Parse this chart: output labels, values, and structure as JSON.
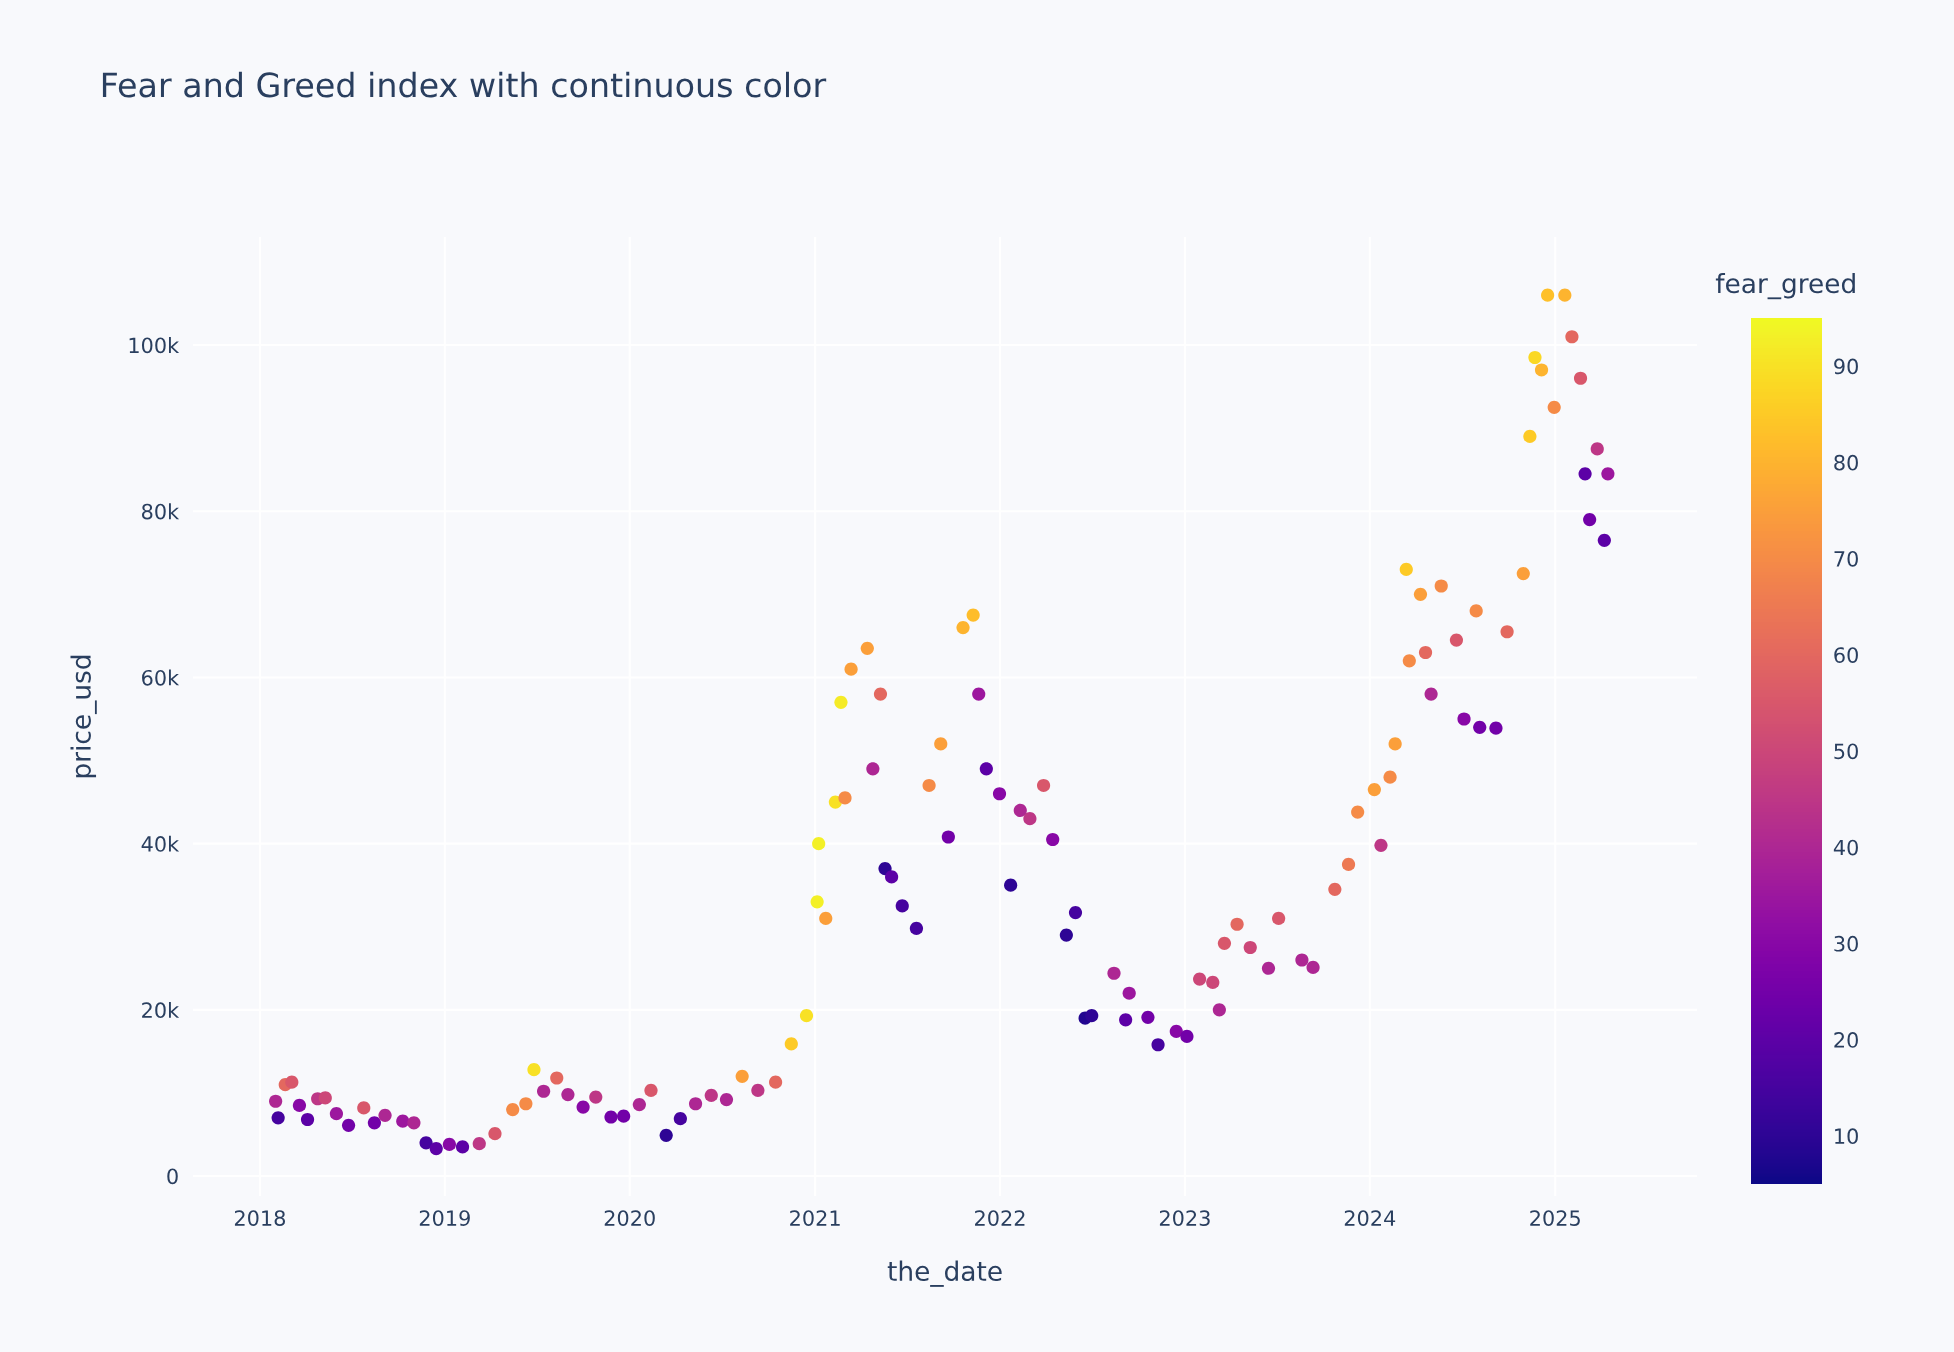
{
  "chart_data": {
    "type": "scatter",
    "title": "Fear and Greed index with continuous color",
    "xlabel": "the_date",
    "ylabel": "price_usd",
    "clabel": "fear_greed",
    "x": [
      "2018-02-01",
      "2018-02-06",
      "2018-02-20",
      "2018-03-05",
      "2018-03-20",
      "2018-04-05",
      "2018-04-25",
      "2018-05-10",
      "2018-06-01",
      "2018-06-25",
      "2018-07-25",
      "2018-08-15",
      "2018-09-05",
      "2018-10-10",
      "2018-11-01",
      "2018-11-25",
      "2018-12-15",
      "2019-01-10",
      "2019-02-05",
      "2019-03-10",
      "2019-04-10",
      "2019-05-15",
      "2019-06-10",
      "2019-06-26",
      "2019-07-15",
      "2019-08-10",
      "2019-09-01",
      "2019-10-01",
      "2019-10-26",
      "2019-11-25",
      "2019-12-20",
      "2020-01-20",
      "2020-02-12",
      "2020-03-13",
      "2020-04-10",
      "2020-05-10",
      "2020-06-10",
      "2020-07-10",
      "2020-08-10",
      "2020-09-10",
      "2020-10-15",
      "2020-11-15",
      "2020-12-15",
      "2021-01-05",
      "2021-01-08",
      "2021-01-22",
      "2021-02-10",
      "2021-02-21",
      "2021-03-01",
      "2021-03-13",
      "2021-04-14",
      "2021-04-25",
      "2021-05-10",
      "2021-05-19",
      "2021-06-01",
      "2021-06-22",
      "2021-07-20",
      "2021-08-14",
      "2021-09-06",
      "2021-09-21",
      "2021-10-20",
      "2021-11-09",
      "2021-11-20",
      "2021-12-05",
      "2021-12-31",
      "2022-01-22",
      "2022-02-10",
      "2022-03-01",
      "2022-03-28",
      "2022-04-15",
      "2022-05-12",
      "2022-05-30",
      "2022-06-18",
      "2022-07-01",
      "2022-08-14",
      "2022-09-06",
      "2022-09-13",
      "2022-10-20",
      "2022-11-09",
      "2022-12-15",
      "2023-01-05",
      "2023-01-30",
      "2023-02-25",
      "2023-03-10",
      "2023-03-20",
      "2023-04-14",
      "2023-05-10",
      "2023-06-15",
      "2023-07-05",
      "2023-08-20",
      "2023-09-11",
      "2023-10-24",
      "2023-11-20",
      "2023-12-08",
      "2024-01-10",
      "2024-01-23",
      "2024-02-10",
      "2024-02-20",
      "2024-03-13",
      "2024-03-19",
      "2024-04-10",
      "2024-04-20",
      "2024-05-01",
      "2024-05-21",
      "2024-06-20",
      "2024-07-05",
      "2024-07-29",
      "2024-08-05",
      "2024-09-06",
      "2024-09-28",
      "2024-10-30",
      "2024-11-12",
      "2024-11-22",
      "2024-12-05",
      "2024-12-17",
      "2024-12-30",
      "2025-01-20",
      "2025-02-03",
      "2025-02-20",
      "2025-03-01",
      "2025-03-10",
      "2025-03-25",
      "2025-04-08",
      "2025-04-15"
    ],
    "values": [
      9000,
      7000,
      11000,
      11300,
      8500,
      6800,
      9300,
      9400,
      7500,
      6100,
      8200,
      6400,
      7300,
      6600,
      6400,
      4000,
      3300,
      3800,
      3500,
      3900,
      5100,
      8000,
      8700,
      12800,
      10200,
      11800,
      9800,
      8300,
      9500,
      7100,
      7200,
      8600,
      10300,
      4900,
      6900,
      8700,
      9700,
      9200,
      12000,
      10300,
      11300,
      15900,
      19300,
      33000,
      40000,
      31000,
      45000,
      57000,
      45500,
      61000,
      63500,
      49000,
      58000,
      37000,
      36000,
      32500,
      29800,
      47000,
      52000,
      40800,
      66000,
      67500,
      58000,
      49000,
      46000,
      35000,
      44000,
      43000,
      47000,
      40500,
      29000,
      31700,
      19000,
      19300,
      24400,
      18800,
      22000,
      19100,
      15800,
      17400,
      16800,
      23700,
      23300,
      20000,
      28000,
      30300,
      27500,
      25000,
      31000,
      26000,
      25100,
      34500,
      37500,
      43800,
      46500,
      39800,
      48000,
      52000,
      73000,
      62000,
      70000,
      63000,
      58000,
      71000,
      64500,
      55000,
      68000,
      54000,
      53900,
      65500,
      72500,
      89000,
      98500,
      97000,
      106000,
      92500,
      106000,
      101000,
      96000,
      84500,
      79000,
      87500,
      76500,
      84500
    ],
    "cvalues": [
      40,
      15,
      60,
      55,
      30,
      20,
      45,
      50,
      35,
      25,
      55,
      25,
      40,
      35,
      40,
      15,
      20,
      30,
      20,
      45,
      55,
      70,
      70,
      90,
      40,
      60,
      40,
      30,
      45,
      25,
      25,
      40,
      55,
      10,
      15,
      40,
      45,
      40,
      75,
      45,
      60,
      85,
      90,
      93,
      93,
      75,
      90,
      92,
      70,
      75,
      75,
      40,
      60,
      10,
      20,
      15,
      15,
      70,
      75,
      25,
      80,
      82,
      35,
      20,
      30,
      10,
      40,
      45,
      55,
      30,
      10,
      15,
      8,
      10,
      40,
      20,
      35,
      25,
      15,
      30,
      25,
      50,
      50,
      40,
      55,
      60,
      50,
      40,
      55,
      40,
      40,
      60,
      65,
      70,
      75,
      45,
      70,
      75,
      85,
      70,
      75,
      60,
      40,
      70,
      55,
      30,
      70,
      25,
      25,
      60,
      75,
      85,
      88,
      80,
      83,
      70,
      80,
      60,
      55,
      20,
      25,
      45,
      20,
      35
    ],
    "xlim": [
      "2017-08-22",
      "2025-10-08"
    ],
    "xticks": [
      {
        "value": "2018",
        "label": "2018"
      },
      {
        "value": "2019",
        "label": "2019"
      },
      {
        "value": "2020",
        "label": "2020"
      },
      {
        "value": "2021",
        "label": "2021"
      },
      {
        "value": "2022",
        "label": "2022"
      },
      {
        "value": "2023",
        "label": "2023"
      },
      {
        "value": "2024",
        "label": "2024"
      },
      {
        "value": "2025",
        "label": "2025"
      }
    ],
    "ylim": [
      -2400,
      113000
    ],
    "yticks": [
      0,
      {
        "value": 20000,
        "label": "20k"
      },
      {
        "value": 40000,
        "label": "40k"
      },
      {
        "value": 60000,
        "label": "60k"
      },
      {
        "value": 80000,
        "label": "80k"
      },
      {
        "value": 100000,
        "label": "100k"
      }
    ],
    "clim": [
      5,
      95
    ],
    "cticks": [
      10,
      20,
      30,
      40,
      50,
      60,
      70,
      80,
      90
    ],
    "grid": true,
    "marker": "circle"
  }
}
